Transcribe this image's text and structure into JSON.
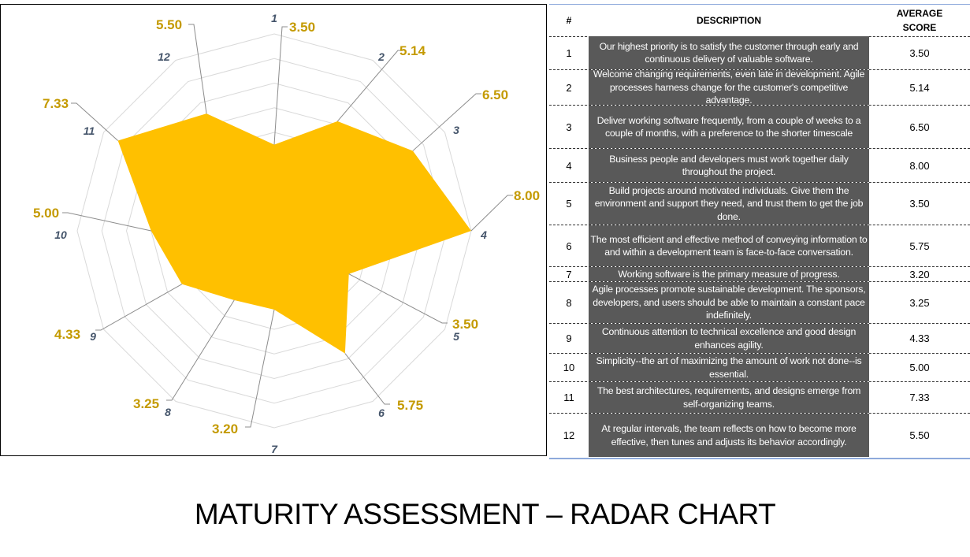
{
  "chart_data": {
    "type": "radar",
    "title": "MATURITY ASSESSMENT – RADAR CHART",
    "categories": [
      "1",
      "2",
      "3",
      "4",
      "5",
      "6",
      "7",
      "8",
      "9",
      "10",
      "11",
      "12"
    ],
    "values": [
      3.5,
      5.14,
      6.5,
      8.0,
      3.5,
      5.75,
      3.2,
      3.25,
      4.33,
      5.0,
      7.33,
      5.5
    ],
    "value_labels": [
      "3.50",
      "5.14",
      "6.50",
      "8.00",
      "3.50",
      "5.75",
      "3.20",
      "3.25",
      "4.33",
      "5.00",
      "7.33",
      "5.50"
    ],
    "rlim": [
      0,
      8
    ],
    "ring_step": 1,
    "grid": true,
    "fill_color": "#ffc000",
    "grid_color": "#d9d9d9",
    "label_color": "#c49a00",
    "axis_label_color": "#44546a"
  },
  "table": {
    "headers": {
      "num": "#",
      "description": "DESCRIPTION",
      "score_line1": "AVERAGE",
      "score_line2": "SCORE"
    },
    "rows": [
      {
        "num": "1",
        "description": "Our highest priority is to satisfy the customer through early and continuous delivery of valuable software.",
        "score": "3.50"
      },
      {
        "num": "2",
        "description": "Welcome changing requirements, even late in development. Agile processes harness change for the customer's competitive advantage.",
        "score": "5.14"
      },
      {
        "num": "3",
        "description": "Deliver working software frequently, from a couple of weeks to a couple of months, with a preference to the shorter timescale",
        "score": "6.50"
      },
      {
        "num": "4",
        "description": "Business people and developers must work together daily throughout the project.",
        "score": "8.00"
      },
      {
        "num": "5",
        "description": "Build projects around motivated individuals. Give them the environment and support they need, and trust them to get the job done.",
        "score": "3.50"
      },
      {
        "num": "6",
        "description": "The most efficient and effective method of conveying information to and within a development team is face-to-face conversation.",
        "score": "5.75"
      },
      {
        "num": "7",
        "description": "Working software is the primary measure of progress.",
        "score": "3.20"
      },
      {
        "num": "8",
        "description": "Agile processes promote sustainable development. The sponsors, developers, and users should be able to maintain a constant pace indefinitely.",
        "score": "3.25"
      },
      {
        "num": "9",
        "description": "Continuous attention to technical excellence and good design enhances agility.",
        "score": "4.33"
      },
      {
        "num": "10",
        "description": "Simplicity--the art of maximizing the amount of work not done--is essential.",
        "score": "5.00"
      },
      {
        "num": "11",
        "description": "The best architectures, requirements, and designs emerge from self-organizing teams.",
        "score": "7.33"
      },
      {
        "num": "12",
        "description": "At regular intervals, the team reflects on how to become more effective, then tunes and adjusts its behavior accordingly.",
        "score": "5.50"
      }
    ]
  },
  "page_title": "MATURITY ASSESSMENT – RADAR CHART"
}
